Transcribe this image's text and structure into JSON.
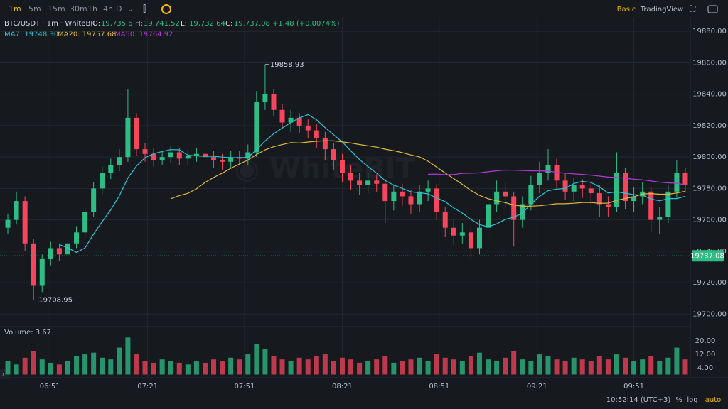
{
  "toolbar": {
    "intervals": [
      "1m",
      "5m",
      "15m",
      "30m",
      "1h",
      "4h",
      "D"
    ],
    "modes": [
      "Basic",
      "TradingView"
    ]
  },
  "footer": {
    "clock": "10:52:14 (UTC+3)",
    "options": [
      "%",
      "log",
      "auto"
    ]
  },
  "chart_data": {
    "type": "candlestick",
    "title": "BTC/USDT · 1m · WhiteBIT",
    "quote": [
      {
        "label": "O:",
        "value": "19,735.6"
      },
      {
        "label": "H:",
        "value": "19,741.52"
      },
      {
        "label": "L:",
        "value": "19,732.64"
      },
      {
        "label": "C:",
        "value": "19,737.08"
      }
    ],
    "change": "+1.48 (+0.0074%)",
    "up_color": "#2ebd85",
    "down_color": "#f6465d",
    "x": [
      0,
      1,
      2,
      3,
      4,
      5,
      6,
      7,
      8,
      9,
      10,
      11,
      12,
      13,
      14,
      15,
      16,
      17,
      18,
      19,
      20,
      21,
      22,
      23,
      24,
      25,
      26,
      27,
      28,
      29,
      30,
      31,
      32,
      33,
      34,
      35,
      36,
      37,
      38,
      39,
      40,
      41,
      42,
      43,
      44,
      45,
      46,
      47,
      48,
      49,
      50,
      51,
      52,
      53,
      54,
      55,
      56,
      57,
      58,
      59,
      60,
      61,
      62,
      63,
      64,
      65,
      66,
      67,
      68,
      69,
      70,
      71,
      72,
      73,
      74,
      75,
      76,
      77,
      78,
      79
    ],
    "open": [
      19755,
      19760,
      19772,
      19745,
      19718,
      19735,
      19742,
      19738,
      19745,
      19752,
      19765,
      19780,
      19790,
      19795,
      19800,
      19825,
      19805,
      19802,
      19798,
      19800,
      19803,
      19799,
      19801,
      19802,
      19800,
      19798,
      19797,
      19800,
      19799,
      19803,
      19835,
      19840,
      19830,
      19822,
      19825,
      19820,
      19817,
      19812,
      19805,
      19798,
      19790,
      19785,
      19782,
      19785,
      19783,
      19772,
      19778,
      19775,
      19770,
      19778,
      19780,
      19765,
      19755,
      19750,
      19752,
      19742,
      19755,
      19770,
      19778,
      19775,
      19760,
      19770,
      19782,
      19790,
      19795,
      19785,
      19778,
      19782,
      19780,
      19777,
      19770,
      19768,
      19790,
      19772,
      19775,
      19778,
      19760,
      19762,
      19778,
      19790
    ],
    "high": [
      19764,
      19778,
      19775,
      19748,
      19738,
      19746,
      19745,
      19748,
      19756,
      19768,
      19784,
      19794,
      19799,
      19805,
      19843,
      19828,
      19809,
      19806,
      19804,
      19807,
      19806,
      19805,
      19806,
      19805,
      19804,
      19802,
      19804,
      19804,
      19808,
      19842,
      19858.93,
      19843,
      19834,
      19830,
      19828,
      19824,
      19821,
      19816,
      19809,
      19802,
      19795,
      19790,
      19790,
      19789,
      19786,
      19782,
      19783,
      19779,
      19782,
      19785,
      19783,
      19768,
      19760,
      19758,
      19756,
      19760,
      19776,
      19785,
      19784,
      19778,
      19775,
      19788,
      19797,
      19805,
      19799,
      19790,
      19787,
      19786,
      19785,
      19782,
      19775,
      19803,
      19793,
      19781,
      19784,
      19781,
      19768,
      19782,
      19798,
      19793
    ],
    "low": [
      19751,
      19757,
      19740,
      19708.95,
      19714,
      19731,
      19734,
      19735,
      19742,
      19749,
      19762,
      19776,
      19786,
      19791,
      19797,
      19801,
      19797,
      19794,
      19795,
      19796,
      19795,
      19795,
      19797,
      19796,
      19793,
      19792,
      19793,
      19795,
      19795,
      19800,
      19830,
      19826,
      19818,
      19816,
      19815,
      19812,
      19806,
      19798,
      19792,
      19784,
      19779,
      19776,
      19777,
      19778,
      19758,
      19766,
      19769,
      19764,
      19765,
      19772,
      19760,
      19749,
      19744,
      19745,
      19735,
      19738,
      19750,
      19765,
      19768,
      19743,
      19755,
      19766,
      19777,
      19785,
      19780,
      19773,
      19772,
      19774,
      19770,
      19762,
      19762,
      19765,
      19767,
      19765,
      19770,
      19752,
      19751,
      19758,
      19774,
      19778
    ],
    "close": [
      19760,
      19772,
      19745,
      19718,
      19735,
      19742,
      19738,
      19745,
      19752,
      19765,
      19780,
      19790,
      19795,
      19800,
      19825,
      19805,
      19802,
      19798,
      19800,
      19803,
      19799,
      19801,
      19802,
      19800,
      19798,
      19797,
      19800,
      19799,
      19803,
      19835,
      19840,
      19830,
      19822,
      19825,
      19820,
      19817,
      19812,
      19805,
      19798,
      19790,
      19785,
      19782,
      19785,
      19783,
      19772,
      19778,
      19775,
      19770,
      19778,
      19780,
      19765,
      19755,
      19750,
      19752,
      19742,
      19755,
      19770,
      19778,
      19775,
      19760,
      19770,
      19782,
      19790,
      19795,
      19785,
      19778,
      19782,
      19780,
      19777,
      19770,
      19768,
      19790,
      19772,
      19775,
      19778,
      19760,
      19762,
      19778,
      19790,
      19782
    ],
    "volume": [
      8,
      6,
      10,
      14,
      9,
      7,
      6,
      8,
      11,
      12,
      13,
      10,
      9,
      16,
      22,
      12,
      8,
      7,
      9,
      8,
      7,
      6,
      8,
      7,
      9,
      8,
      10,
      9,
      12,
      18,
      15,
      11,
      9,
      8,
      10,
      9,
      11,
      12,
      8,
      10,
      9,
      7,
      8,
      9,
      11,
      7,
      8,
      9,
      10,
      8,
      12,
      10,
      9,
      8,
      11,
      13,
      9,
      8,
      10,
      14,
      9,
      8,
      12,
      11,
      9,
      8,
      10,
      9,
      8,
      11,
      9,
      12,
      10,
      8,
      9,
      11,
      8,
      10,
      16,
      9
    ],
    "volume_label": "Volume: 3.67",
    "moving_averages": [
      {
        "name": "MA7: 19748.30",
        "period": 7,
        "color": "#26c6da"
      },
      {
        "name": "MA20: 19757.68",
        "period": 20,
        "color": "#e2b93b"
      },
      {
        "name": "MA50: 19764.92",
        "period": 50,
        "color": "#b23ad6"
      }
    ],
    "last_price": 19737.08,
    "xlim": [
      -0.5,
      79.5
    ],
    "xticks": [
      {
        "value": 4.9,
        "label": "06:51"
      },
      {
        "value": 16.3,
        "label": "07:21"
      },
      {
        "value": 27.6,
        "label": "07:51"
      },
      {
        "value": 39,
        "label": "08:21"
      },
      {
        "value": 50.3,
        "label": "08:51"
      },
      {
        "value": 61.7,
        "label": "09:21"
      },
      {
        "value": 73,
        "label": "09:51"
      }
    ],
    "ylim": [
      19692,
      19900
    ],
    "yticks": [
      {
        "value": 19700,
        "label": "19700.00"
      },
      {
        "value": 19720,
        "label": "19720.00"
      },
      {
        "value": 19740,
        "label": "19740.00"
      },
      {
        "value": 19760,
        "label": "19760.00"
      },
      {
        "value": 19780,
        "label": "19780.00"
      },
      {
        "value": 19800,
        "label": "19800.00"
      },
      {
        "value": 19820,
        "label": "19820.00"
      },
      {
        "value": 19840,
        "label": "19840.00"
      },
      {
        "value": 19860,
        "label": "19860.00"
      },
      {
        "value": 19880,
        "label": "19880.00"
      }
    ],
    "volume_ylim": [
      0,
      23
    ],
    "volume_yticks": [
      {
        "value": 4,
        "label": "4.00"
      },
      {
        "value": 12,
        "label": "12.00"
      },
      {
        "value": 20,
        "label": "20.00"
      }
    ],
    "grid": true
  }
}
